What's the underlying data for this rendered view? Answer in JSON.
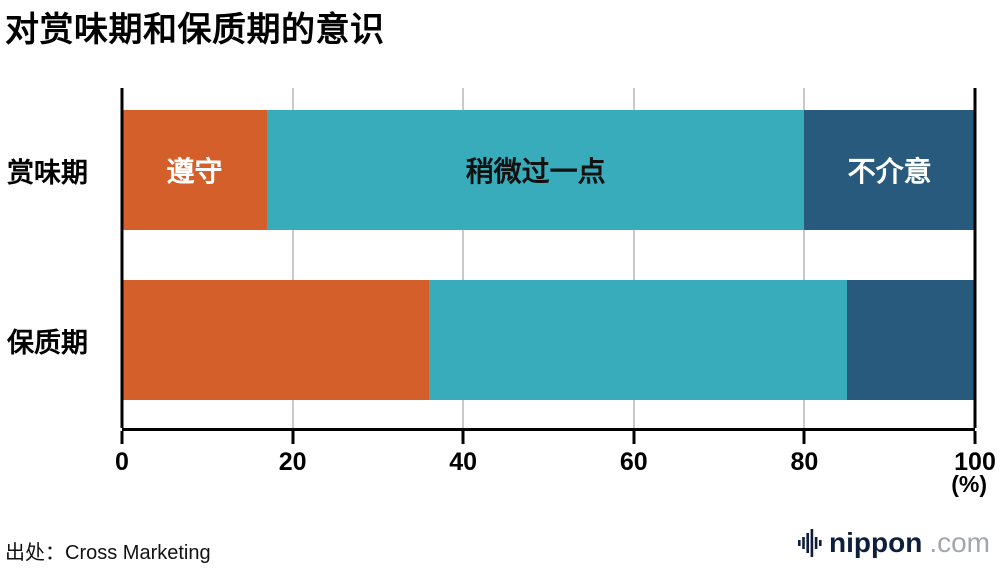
{
  "title": "对赏味期和保质期的意识",
  "source": "出处：Cross Marketing",
  "logo": {
    "name": "nippon",
    "tld": ".com"
  },
  "colors": {
    "comply_orange": "#d45f2b",
    "slightly_teal": "#38acba",
    "dontmind_blue": "#275a7c",
    "gridline_gray": "#c9c9c9",
    "axis_black": "#000000"
  },
  "chart_data": {
    "type": "bar",
    "orientation": "horizontal",
    "stacked": true,
    "title": "对赏味期和保质期的意识",
    "categories": [
      "赏味期",
      "保质期"
    ],
    "series": [
      {
        "name": "遵守",
        "color": "#d45f2b",
        "label_color": "#ffffff",
        "values": [
          17,
          36
        ]
      },
      {
        "name": "稍微过一点",
        "color": "#38acba",
        "label_color": "#111111",
        "values": [
          63,
          49
        ]
      },
      {
        "name": "不介意",
        "color": "#275a7c",
        "label_color": "#ffffff",
        "values": [
          20,
          15
        ]
      }
    ],
    "xlim": [
      0,
      100
    ],
    "xticks": [
      0,
      20,
      40,
      60,
      80,
      100
    ],
    "unit": "(%)",
    "grid": true,
    "legend": "labels-inside-first-bar",
    "segment_labels_shown_on": "赏味期"
  }
}
